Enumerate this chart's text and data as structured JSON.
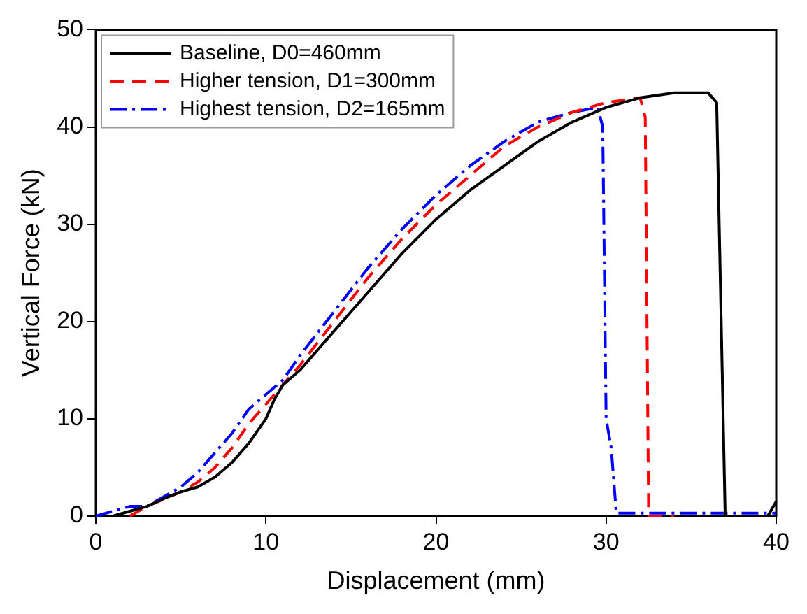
{
  "chart_data": {
    "type": "line",
    "xlabel": "Displacement (mm)",
    "ylabel": "Vertical Force (kN)",
    "xlim": [
      0,
      40
    ],
    "xticks": [
      0,
      10,
      20,
      30,
      40
    ],
    "ylim": [
      0,
      50
    ],
    "yticks": [
      0,
      10,
      20,
      30,
      40,
      50
    ],
    "grid": false,
    "legend": "top left",
    "marker": "none",
    "series": [
      {
        "name": "Baseline, D0=460mm",
        "color": "#000000",
        "line_style": "solid",
        "x": [
          1,
          2,
          3,
          4,
          5,
          6,
          7,
          8,
          9,
          10,
          10.5,
          11,
          12,
          14,
          16,
          18,
          20,
          22,
          24,
          26,
          28,
          30,
          32,
          34,
          36,
          36.5,
          37,
          38,
          39.5,
          40
        ],
        "values": [
          0,
          0.5,
          1,
          1.8,
          2.5,
          3,
          4,
          5.5,
          7.5,
          10,
          12,
          13.5,
          15,
          19,
          23,
          27,
          30.5,
          33.5,
          36,
          38.5,
          40.5,
          42,
          43,
          43.5,
          43.5,
          42.5,
          0,
          0,
          0,
          1.5
        ]
      },
      {
        "name": "Higher tension, D1=300mm",
        "color": "#ff0000",
        "line_style": "dashed",
        "x": [
          2,
          3,
          5,
          6,
          7,
          8,
          9,
          10,
          11,
          12,
          14,
          16,
          18,
          20,
          22,
          24,
          26,
          28,
          30,
          32,
          32.3,
          32.5,
          33,
          34
        ],
        "values": [
          0,
          1,
          2.5,
          3.5,
          5,
          7,
          9.5,
          11.5,
          13.5,
          15.5,
          20,
          24.5,
          28.5,
          32,
          35,
          38,
          40,
          41.5,
          42.5,
          43,
          41,
          0,
          0,
          0
        ]
      },
      {
        "name": "Highest tension, D2=165mm",
        "color": "#0000ff",
        "line_style": "dashdot",
        "x": [
          0,
          1,
          2,
          3,
          4,
          5,
          6,
          7,
          8,
          9,
          10,
          11,
          12,
          14,
          16,
          18,
          20,
          22,
          24,
          26,
          28,
          29.5,
          29.8,
          30,
          30.3,
          30.6,
          32,
          35,
          40
        ],
        "values": [
          0,
          0.5,
          1,
          1,
          2,
          3,
          4.5,
          6.5,
          8.5,
          11,
          12.5,
          14,
          16.5,
          21,
          25.5,
          29.5,
          33,
          36,
          38.5,
          40.5,
          41.5,
          42,
          40,
          10,
          7,
          0.3,
          0.3,
          0.3,
          0.3
        ]
      }
    ]
  }
}
